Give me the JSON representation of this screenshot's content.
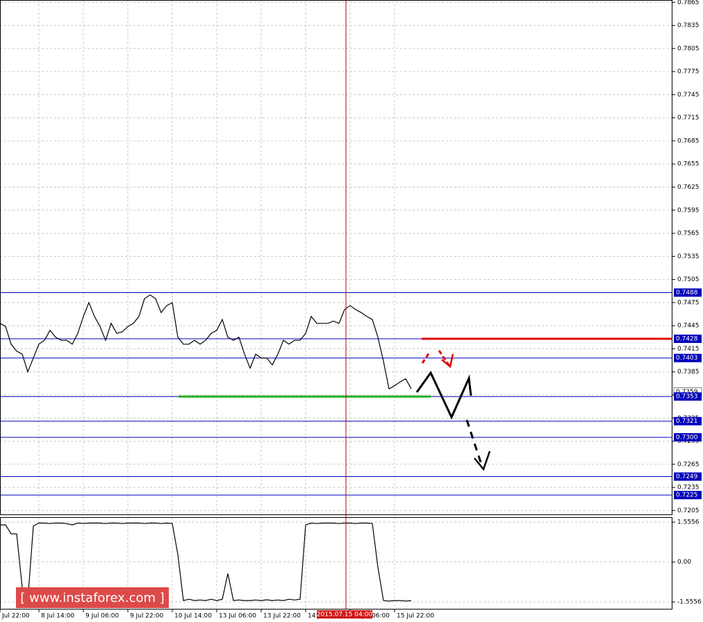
{
  "chart_data": [
    {
      "type": "line",
      "color": "#000000",
      "x": [
        0,
        2,
        4,
        6,
        8,
        10,
        12,
        14,
        16,
        18,
        20,
        22,
        24,
        26,
        28,
        30,
        32,
        34,
        36,
        38,
        40,
        42,
        44,
        46,
        48,
        50,
        52,
        54,
        56,
        58,
        60,
        62,
        64,
        66,
        68,
        70,
        72,
        74,
        76,
        78,
        80,
        82,
        84,
        86,
        88,
        90,
        92,
        94,
        96,
        98,
        100,
        102,
        104,
        106,
        108,
        110,
        112,
        114,
        116,
        118,
        120,
        122,
        124,
        126,
        128,
        130,
        132,
        134,
        136,
        138,
        140,
        142,
        144,
        146,
        148
      ],
      "values": [
        0.7448,
        0.7444,
        0.7421,
        0.7412,
        0.7408,
        0.7385,
        0.7403,
        0.7421,
        0.7426,
        0.7439,
        0.743,
        0.7426,
        0.7426,
        0.7421,
        0.7435,
        0.7457,
        0.7475,
        0.7457,
        0.7444,
        0.7426,
        0.7448,
        0.7435,
        0.7437,
        0.7444,
        0.7448,
        0.7457,
        0.748,
        0.7485,
        0.748,
        0.7462,
        0.7471,
        0.7475,
        0.743,
        0.7421,
        0.7421,
        0.7426,
        0.7421,
        0.7426,
        0.7435,
        0.7439,
        0.7453,
        0.743,
        0.7426,
        0.743,
        0.7408,
        0.739,
        0.7408,
        0.7403,
        0.7403,
        0.7394,
        0.7408,
        0.7426,
        0.7421,
        0.7426,
        0.7426,
        0.7435,
        0.7457,
        0.7448,
        0.7448,
        0.7448,
        0.7451,
        0.7448,
        0.7466,
        0.7471,
        0.7466,
        0.7462,
        0.7457,
        0.7453,
        0.743,
        0.7399,
        0.7363,
        0.7367,
        0.7372,
        0.7376,
        0.7363
      ],
      "xlim": [
        0,
        242
      ],
      "ylim": [
        0.7199,
        0.7868
      ],
      "yticks": [
        0.7865,
        0.7835,
        0.7805,
        0.7775,
        0.7745,
        0.7715,
        0.7685,
        0.7655,
        0.7625,
        0.7595,
        0.7565,
        0.7535,
        0.7505,
        0.7475,
        0.7445,
        0.7415,
        0.7385,
        0.7355,
        0.7325,
        0.7295,
        0.7265,
        0.7235,
        0.7205
      ],
      "grid": true,
      "levels": [
        0.7488,
        0.7428,
        0.7403,
        0.7353,
        0.7321,
        {
          "value": 0.73,
          "label": "0.7300"
        },
        0.7249,
        0.7225
      ],
      "level_color": "#0000bb",
      "current_price": 0.7359,
      "resistance": {
        "value": 0.7428,
        "color": "#e00000"
      },
      "support": {
        "value": 0.7353,
        "color": "#22b022"
      },
      "crosshair": {
        "x": 124.5,
        "label": "2015.07.15 04:00"
      }
    },
    {
      "type": "line",
      "color": "#000000",
      "x": [
        0,
        2,
        4,
        6,
        8,
        10,
        12,
        14,
        16,
        18,
        20,
        22,
        24,
        26,
        28,
        30,
        32,
        34,
        36,
        38,
        40,
        42,
        44,
        46,
        48,
        50,
        52,
        54,
        56,
        58,
        60,
        62,
        64,
        66,
        68,
        70,
        72,
        74,
        76,
        78,
        80,
        82,
        84,
        86,
        88,
        90,
        92,
        94,
        96,
        98,
        100,
        102,
        104,
        106,
        108,
        110,
        112,
        114,
        116,
        118,
        120,
        122,
        124,
        126,
        128,
        130,
        132,
        134,
        136,
        138,
        140,
        142,
        144,
        146,
        148
      ],
      "values": [
        1.45,
        1.45,
        1.1,
        1.1,
        -1.0,
        -1.5,
        1.4,
        1.52,
        1.52,
        1.5,
        1.52,
        1.52,
        1.5,
        1.45,
        1.52,
        1.5,
        1.52,
        1.52,
        1.52,
        1.5,
        1.52,
        1.52,
        1.5,
        1.52,
        1.52,
        1.52,
        1.5,
        1.52,
        1.52,
        1.5,
        1.52,
        1.5,
        0.3,
        -1.5,
        -1.45,
        -1.5,
        -1.48,
        -1.5,
        -1.45,
        -1.5,
        -1.45,
        -0.45,
        -1.5,
        -1.48,
        -1.5,
        -1.5,
        -1.48,
        -1.5,
        -1.47,
        -1.5,
        -1.48,
        -1.5,
        -1.45,
        -1.48,
        -1.45,
        1.45,
        1.52,
        1.5,
        1.52,
        1.52,
        1.52,
        1.5,
        1.52,
        1.52,
        1.5,
        1.52,
        1.52,
        1.5,
        -0.2,
        -1.5,
        -1.52,
        -1.5,
        -1.5,
        -1.52,
        -1.5
      ],
      "xlim": [
        0,
        242
      ],
      "ylim": [
        -1.85,
        1.75
      ],
      "yticks": [
        1.5556,
        {
          "value": 0,
          "label": "0.00"
        },
        -1.5556
      ],
      "xticks": [
        {
          "value": 0,
          "label": "Jul 22:00"
        },
        {
          "value": 14,
          "label": "8 Jul 14:00"
        },
        {
          "value": 30,
          "label": "9 Jul 06:00"
        },
        {
          "value": 46,
          "label": "9 Jul 22:00"
        },
        {
          "value": 62,
          "label": "10 Jul 14:00"
        },
        {
          "value": 78,
          "label": "13 Jul 06:00"
        },
        {
          "value": 94,
          "label": "13 Jul 22:00"
        },
        {
          "value": 110,
          "label": "14 Jul 14:00"
        },
        {
          "value": 126,
          "label": "15 Jul 06:00"
        },
        {
          "value": 142,
          "label": "15 Jul 22:00"
        }
      ],
      "grid": true
    }
  ],
  "watermark": "[ www.instaforex.com ]"
}
